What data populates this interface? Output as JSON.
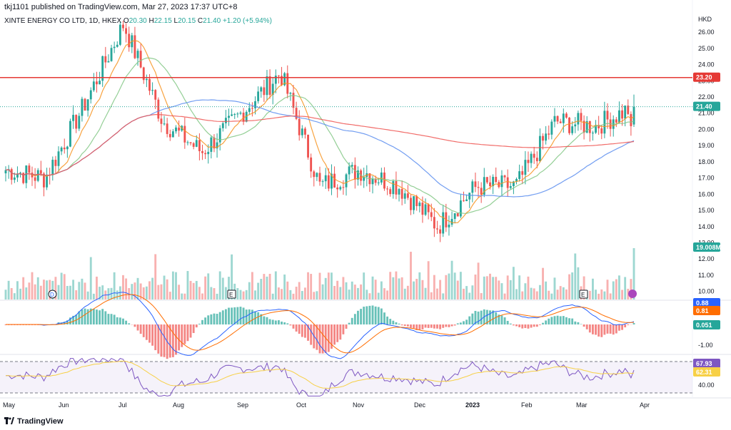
{
  "header": {
    "published": "tkj1101 published on TradingView.com, Mar 27, 2023 17:37 UTC+8"
  },
  "legend": {
    "symbol": "XINTE ENERGY CO LTD, 1D, HKEX",
    "o_label": "O",
    "o_value": "20.30",
    "h_label": "H",
    "h_value": "22.15",
    "l_label": "L",
    "l_value": "20.15",
    "c_label": "C",
    "c_value": "21.40",
    "change": "+1.20 (+5.94%)"
  },
  "brand": {
    "name": "TradingView"
  },
  "colors": {
    "up": "#26a69a",
    "down": "#ef5350",
    "ma_fast": "#f7931e",
    "ma_mid": "#81c784",
    "ma_slow": "#5b8def",
    "ma_long": "#ef5350",
    "rsi": "#7e57c2",
    "rsi_ma": "#f7d046"
  },
  "chart_data": {
    "type": "candlestick",
    "currency": "HKD",
    "price_axis": {
      "ticks": [
        "26.00",
        "25.00",
        "24.00",
        "23.00",
        "22.00",
        "21.00",
        "20.00",
        "19.00",
        "18.00",
        "17.00",
        "16.00",
        "15.00",
        "14.00",
        "13.00",
        "12.00",
        "11.00",
        "10.00"
      ],
      "range": [
        9.5,
        26.4
      ]
    },
    "month_labels": [
      "May",
      "Jun",
      "Jul",
      "Aug",
      "Sep",
      "Oct",
      "Nov",
      "Dec",
      "2023",
      "Feb",
      "Mar",
      "Apr"
    ],
    "horizontal_level": 23.2,
    "last_price": 21.4,
    "price_badges": [
      "23.20",
      "21.40"
    ],
    "volume_badge": "19.008M",
    "event_markers": [
      "D",
      "E",
      "E"
    ],
    "keypoints": [
      {
        "date": "May",
        "price": 17.5
      },
      {
        "date": "Jun early",
        "price": 17.0
      },
      {
        "date": "Jun mid",
        "price": 21.5
      },
      {
        "date": "Jul early",
        "price": 26.5
      },
      {
        "date": "Jul end",
        "price": 20.5
      },
      {
        "date": "Aug early",
        "price": 18.6
      },
      {
        "date": "Aug end",
        "price": 21.0
      },
      {
        "date": "Sep mid",
        "price": 23.5
      },
      {
        "date": "Oct early",
        "price": 16.5
      },
      {
        "date": "Nov early",
        "price": 17.5
      },
      {
        "date": "Nov end",
        "price": 16.5
      },
      {
        "date": "Dec end",
        "price": 14.0
      },
      {
        "date": "Jan 2023",
        "price": 16.5
      },
      {
        "date": "Feb",
        "price": 16.5
      },
      {
        "date": "Mar early",
        "price": 20.5
      },
      {
        "date": "Mar 24",
        "price": 20.2
      },
      {
        "date": "Mar 27",
        "price": 21.4
      }
    ],
    "macd": {
      "values": [
        "0.88",
        "0.81",
        "0.051"
      ],
      "ticks": [
        "-1.00"
      ]
    },
    "rsi": {
      "values": [
        "67.93",
        "62.31"
      ],
      "ticks": [
        "40.00"
      ]
    }
  }
}
